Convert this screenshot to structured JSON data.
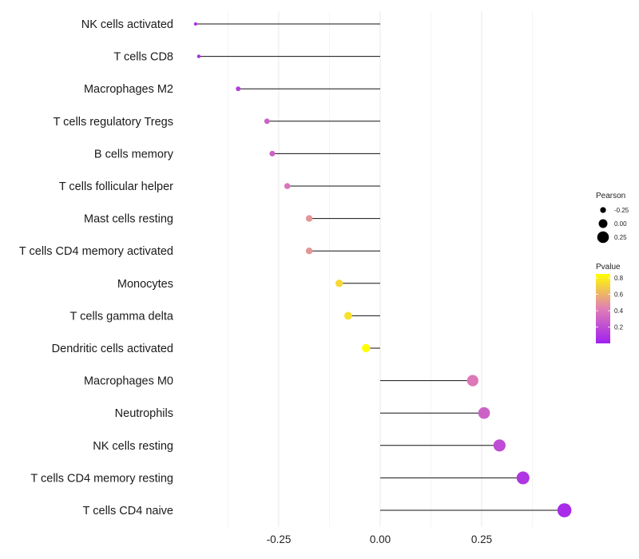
{
  "chart_data": {
    "type": "lollipop",
    "title": "",
    "xlabel": "",
    "ylabel": "",
    "xlim": [
      -0.48,
      0.5
    ],
    "x_ticks": [
      -0.25,
      0.0,
      0.25
    ],
    "x_tick_labels": [
      "-0.25",
      "0.00",
      "0.25"
    ],
    "grid": "vertical",
    "categories": [
      "NK cells activated",
      "T cells CD8",
      "Macrophages M2",
      "T cells regulatory  Tregs",
      "B cells memory",
      "T cells follicular helper",
      "Mast cells resting",
      "T cells CD4 memory activated",
      "Monocytes",
      "T cells gamma delta",
      "Dendritic cells activated",
      "Macrophages M0",
      "Neutrophils",
      "NK cells resting",
      "T cells CD4 memory resting",
      "T cells CD4 naive"
    ],
    "pearson": [
      -0.455,
      -0.447,
      -0.35,
      -0.279,
      -0.266,
      -0.229,
      -0.175,
      -0.175,
      -0.101,
      -0.079,
      -0.035,
      0.228,
      0.256,
      0.294,
      0.352,
      0.454
    ],
    "pvalue": [
      0.08,
      0.05,
      0.12,
      0.3,
      0.3,
      0.38,
      0.5,
      0.5,
      0.72,
      0.75,
      0.9,
      0.4,
      0.3,
      0.2,
      0.1,
      0.05
    ],
    "legend": {
      "position": "right",
      "size_title": "Pearson",
      "size_values": [
        -0.25,
        0.0,
        0.25
      ],
      "size_labels": [
        "-0.25",
        "0.00",
        "0.25"
      ],
      "color_title": "Pvalue",
      "color_ticks": [
        0.2,
        0.4,
        0.6,
        0.8
      ],
      "color_tick_labels": [
        "0.2",
        "0.4",
        "0.6",
        "0.8"
      ],
      "color_range": [
        0.0,
        0.85
      ],
      "color_low": "#a020f0",
      "color_mid": "#e07eb5",
      "color_high": "#ffff00"
    }
  }
}
